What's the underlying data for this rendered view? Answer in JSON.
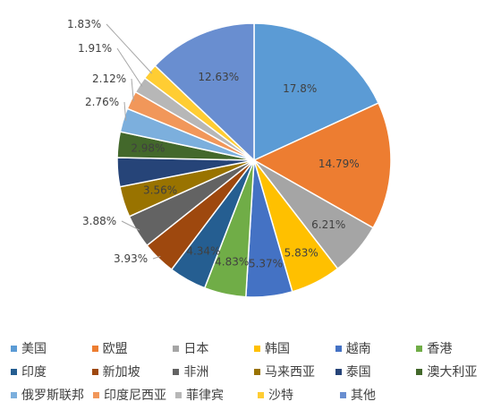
{
  "chart_data": {
    "type": "pie",
    "categories": [
      "美国",
      "欧盟",
      "日本",
      "韩国",
      "越南",
      "香港",
      "印度",
      "新加坡",
      "非洲",
      "马来西亚",
      "泰国",
      "澳大利亚",
      "俄罗斯联邦",
      "印度尼西亚",
      "菲律宾",
      "沙特",
      "其他"
    ],
    "values": [
      17.8,
      14.79,
      6.21,
      5.83,
      5.37,
      4.83,
      4.34,
      3.93,
      3.88,
      3.56,
      3.35,
      2.98,
      2.76,
      2.12,
      1.91,
      1.83,
      12.63
    ],
    "data_labels": [
      "17.8%",
      "14.79%",
      "6.21%",
      "5.83%",
      "5.37%",
      "4.83%",
      "4.34%",
      "3.93%",
      "3.88%",
      "3.56%",
      "",
      "2.98%",
      "2.76%",
      "2.12%",
      "1.91%",
      "1.83%",
      "12.63%"
    ],
    "colors": [
      "#5b9bd5",
      "#ed7d31",
      "#a5a5a5",
      "#ffc000",
      "#4472c4",
      "#70ad47",
      "#255e91",
      "#9e480e",
      "#636363",
      "#997300",
      "#264478",
      "#43682b",
      "#7cafdd",
      "#f1975a",
      "#b7b7b7",
      "#ffcd33",
      "#698ed0"
    ],
    "title": "",
    "legend_position": "bottom"
  }
}
